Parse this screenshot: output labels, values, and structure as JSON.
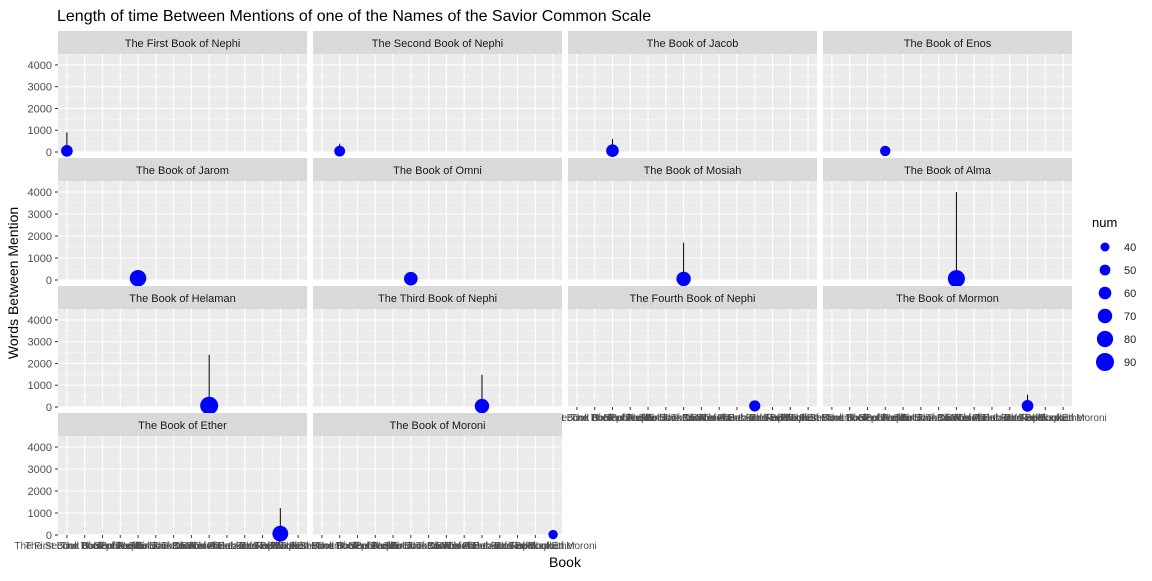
{
  "chart_data": {
    "type": "scatter",
    "title": "Length of time Between Mentions of one of the Names of the Savior Common Scale",
    "xlabel": "Book",
    "ylabel": "Words Between Mention",
    "ylim": [
      0,
      4500
    ],
    "yticks": [
      0,
      1000,
      2000,
      3000,
      4000
    ],
    "grid": true,
    "legend": {
      "title": "num",
      "position": "right",
      "values": [
        40,
        50,
        60,
        70,
        80,
        90
      ]
    },
    "colors": {
      "point": "#0000ff",
      "line": "#000000",
      "panel": "#ebebeb",
      "strip": "#d9d9d9"
    },
    "categories": [
      "The First Book of Nephi",
      "The Second Book of Nephi",
      "The Book of Jacob",
      "The Book of Enos",
      "The Book of Jarom",
      "The Book of Omni",
      "The Book of Mosiah",
      "The Book of Alma",
      "The Book of Helaman",
      "The Third Book of Nephi",
      "The Fourth Book of Nephi",
      "The Book of Mormon",
      "The Book of Ether",
      "The Book of Moroni"
    ],
    "panels": [
      {
        "name": "The First Book of Nephi",
        "y": 50,
        "ymax": 900,
        "num": 55
      },
      {
        "name": "The Second Book of Nephi",
        "y": 40,
        "ymax": 380,
        "num": 50
      },
      {
        "name": "The Book of Jacob",
        "y": 60,
        "ymax": 600,
        "num": 60
      },
      {
        "name": "The Book of Enos",
        "y": 50,
        "ymax": 280,
        "num": 48
      },
      {
        "name": "The Book of Jarom",
        "y": 80,
        "ymax": 250,
        "num": 82
      },
      {
        "name": "The Book of Omni",
        "y": 60,
        "ymax": 280,
        "num": 66
      },
      {
        "name": "The Book of Mosiah",
        "y": 50,
        "ymax": 1700,
        "num": 70
      },
      {
        "name": "The Book of Alma",
        "y": 60,
        "ymax": 4000,
        "num": 85
      },
      {
        "name": "The Book of Helaman",
        "y": 60,
        "ymax": 2400,
        "num": 90
      },
      {
        "name": "The Third Book of Nephi",
        "y": 40,
        "ymax": 1480,
        "num": 70
      },
      {
        "name": "The Fourth Book of Nephi",
        "y": 50,
        "ymax": 200,
        "num": 52
      },
      {
        "name": "The Book of Mormon",
        "y": 50,
        "ymax": 570,
        "num": 55
      },
      {
        "name": "The Book of Ether",
        "y": 60,
        "ymax": 1220,
        "num": 78
      },
      {
        "name": "The Book of Moroni",
        "y": 20,
        "ymax": 120,
        "num": 42
      }
    ]
  }
}
